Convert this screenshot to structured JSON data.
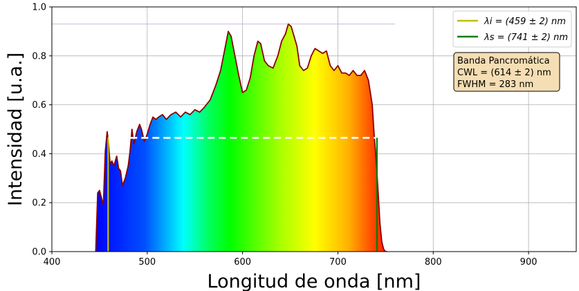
{
  "chart_data": {
    "type": "area",
    "title": "",
    "xlabel": "Longitud de onda [nm]",
    "ylabel": "Intensidad [u.a.]",
    "xlim": [
      400,
      950
    ],
    "ylim": [
      0,
      1.0
    ],
    "grid": true,
    "xticks": [
      "400",
      "500",
      "600",
      "700",
      "800",
      "900"
    ],
    "xtick_values": [
      400,
      500,
      600,
      700,
      800,
      900
    ],
    "yticks": [
      "0.0",
      "0.2",
      "0.4",
      "0.6",
      "0.8",
      "1.0"
    ],
    "ytick_values": [
      0.0,
      0.2,
      0.4,
      0.6,
      0.8,
      1.0
    ],
    "spectrum": {
      "name": "Banda Pancromática",
      "line_color": "#8b0000",
      "x": [
        446,
        448,
        450,
        452,
        454,
        456,
        458,
        459,
        461,
        463,
        465,
        468,
        470,
        472,
        474,
        477,
        480,
        482,
        484,
        486,
        489,
        492,
        494,
        497,
        500,
        503,
        506,
        509,
        512,
        516,
        520,
        525,
        530,
        535,
        540,
        545,
        550,
        555,
        560,
        566,
        572,
        577,
        581,
        585,
        588,
        592,
        596,
        600,
        604,
        608,
        612,
        616,
        619,
        623,
        627,
        632,
        637,
        641,
        645,
        648,
        651,
        654,
        657,
        660,
        664,
        668,
        672,
        676,
        680,
        684,
        688,
        692,
        696,
        700,
        704,
        708,
        712,
        716,
        720,
        724,
        728,
        732,
        736,
        738,
        740,
        742,
        744,
        746,
        748,
        750,
        752
      ],
      "y": [
        0.0,
        0.24,
        0.25,
        0.22,
        0.19,
        0.41,
        0.49,
        0.46,
        0.36,
        0.37,
        0.35,
        0.39,
        0.34,
        0.33,
        0.27,
        0.3,
        0.35,
        0.41,
        0.5,
        0.44,
        0.49,
        0.52,
        0.5,
        0.45,
        0.48,
        0.52,
        0.55,
        0.54,
        0.55,
        0.56,
        0.54,
        0.56,
        0.57,
        0.55,
        0.57,
        0.56,
        0.58,
        0.57,
        0.59,
        0.62,
        0.68,
        0.74,
        0.82,
        0.9,
        0.88,
        0.8,
        0.72,
        0.65,
        0.66,
        0.71,
        0.8,
        0.86,
        0.85,
        0.78,
        0.76,
        0.75,
        0.8,
        0.86,
        0.89,
        0.93,
        0.92,
        0.88,
        0.84,
        0.76,
        0.74,
        0.75,
        0.8,
        0.83,
        0.82,
        0.81,
        0.82,
        0.76,
        0.74,
        0.76,
        0.73,
        0.73,
        0.72,
        0.74,
        0.72,
        0.72,
        0.74,
        0.7,
        0.6,
        0.48,
        0.38,
        0.26,
        0.12,
        0.04,
        0.01,
        0.0,
        0.0
      ]
    },
    "reference_line": {
      "y": 0.93,
      "x_from": 400,
      "x_to": 760
    },
    "half_max": {
      "y": 0.465,
      "x_from": 459,
      "x_to": 741,
      "style": "dashed",
      "color": "#ffffff"
    },
    "markers": [
      {
        "label": "λi = (459 ± 2) nm",
        "x": 459,
        "y": 0.465,
        "color": "#bfbf00"
      },
      {
        "label": "λs = (741 ± 2) nm",
        "x": 741,
        "y": 0.465,
        "color": "#008000"
      }
    ],
    "legend": {
      "position": "top-right",
      "entries": [
        {
          "label": "λi = (459 ± 2) nm",
          "color": "#bfbf00"
        },
        {
          "label": "λs = (741 ± 2) nm",
          "color": "#008000"
        }
      ]
    },
    "info_box": {
      "title": "Banda Pancromática",
      "cwl": "CWL = (614 ± 2) nm",
      "fwhm": "FWHM = 283 nm",
      "background": "#f5deb3"
    }
  }
}
